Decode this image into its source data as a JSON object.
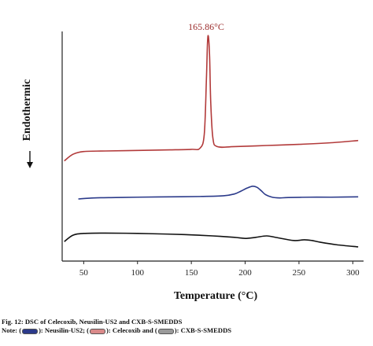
{
  "chart_data": {
    "type": "line",
    "title": "",
    "xlabel": "Temperature (°C)",
    "ylabel": "Endothermic",
    "xlim": [
      30,
      310
    ],
    "xticks": [
      50,
      100,
      150,
      200,
      250,
      300
    ],
    "xtick_labels": [
      "50",
      "100",
      "150",
      "200",
      "250",
      "300"
    ],
    "y_scale": "arbitrary (stacked curves, no y ticks)",
    "grid": false,
    "annotations": [
      {
        "text": "165.86°C",
        "x": 165.86,
        "series": "Celecoxib"
      }
    ],
    "series": [
      {
        "name": "Celecoxib",
        "color": "#b23a3a",
        "x": [
          32,
          40,
          50,
          70,
          100,
          130,
          150,
          158,
          162,
          164,
          165,
          165.86,
          167,
          168,
          170,
          174,
          190,
          220,
          250,
          280,
          305
        ],
        "y": [
          0.1,
          0.7,
          0.95,
          1.0,
          1.05,
          1.1,
          1.15,
          1.25,
          2.5,
          7.5,
          10.8,
          11.4,
          9.5,
          5.5,
          2.2,
          1.4,
          1.4,
          1.5,
          1.6,
          1.75,
          1.95
        ]
      },
      {
        "name": "Neusilin-US2",
        "color": "#2b3a8a",
        "x": [
          45,
          60,
          80,
          100,
          130,
          160,
          180,
          190,
          196,
          202,
          207,
          211,
          215,
          219,
          225,
          232,
          240,
          260,
          280,
          305
        ],
        "y": [
          0.0,
          0.15,
          0.2,
          0.25,
          0.3,
          0.35,
          0.45,
          0.7,
          1.1,
          1.55,
          1.8,
          1.65,
          1.15,
          0.6,
          0.25,
          0.15,
          0.2,
          0.25,
          0.25,
          0.3
        ]
      },
      {
        "name": "CXB-S-SMEDDS",
        "color": "#111111",
        "x": [
          32,
          40,
          50,
          70,
          100,
          130,
          150,
          170,
          190,
          200,
          210,
          220,
          230,
          245,
          255,
          262,
          270,
          285,
          305
        ],
        "y": [
          0.2,
          1.1,
          1.35,
          1.4,
          1.35,
          1.25,
          1.15,
          1.0,
          0.8,
          0.65,
          0.8,
          1.0,
          0.75,
          0.35,
          0.45,
          0.35,
          0.1,
          -0.25,
          -0.55
        ]
      }
    ]
  },
  "caption": {
    "line1": "Fig. 12: DSC of Celecoxib, Neusilin-US2 and CXB-S-SMEDDS",
    "note_prefix": "Note: (",
    "note_part1": "): Neusilin-US2; (",
    "note_part2": "): Celecoxib and (",
    "note_part3": "): CXB-S-SMEDDS"
  },
  "colors": {
    "celecoxib": "#b23a3a",
    "neusilin": "#2b3a8a",
    "smedds": "#111111",
    "axis": "#222222"
  }
}
